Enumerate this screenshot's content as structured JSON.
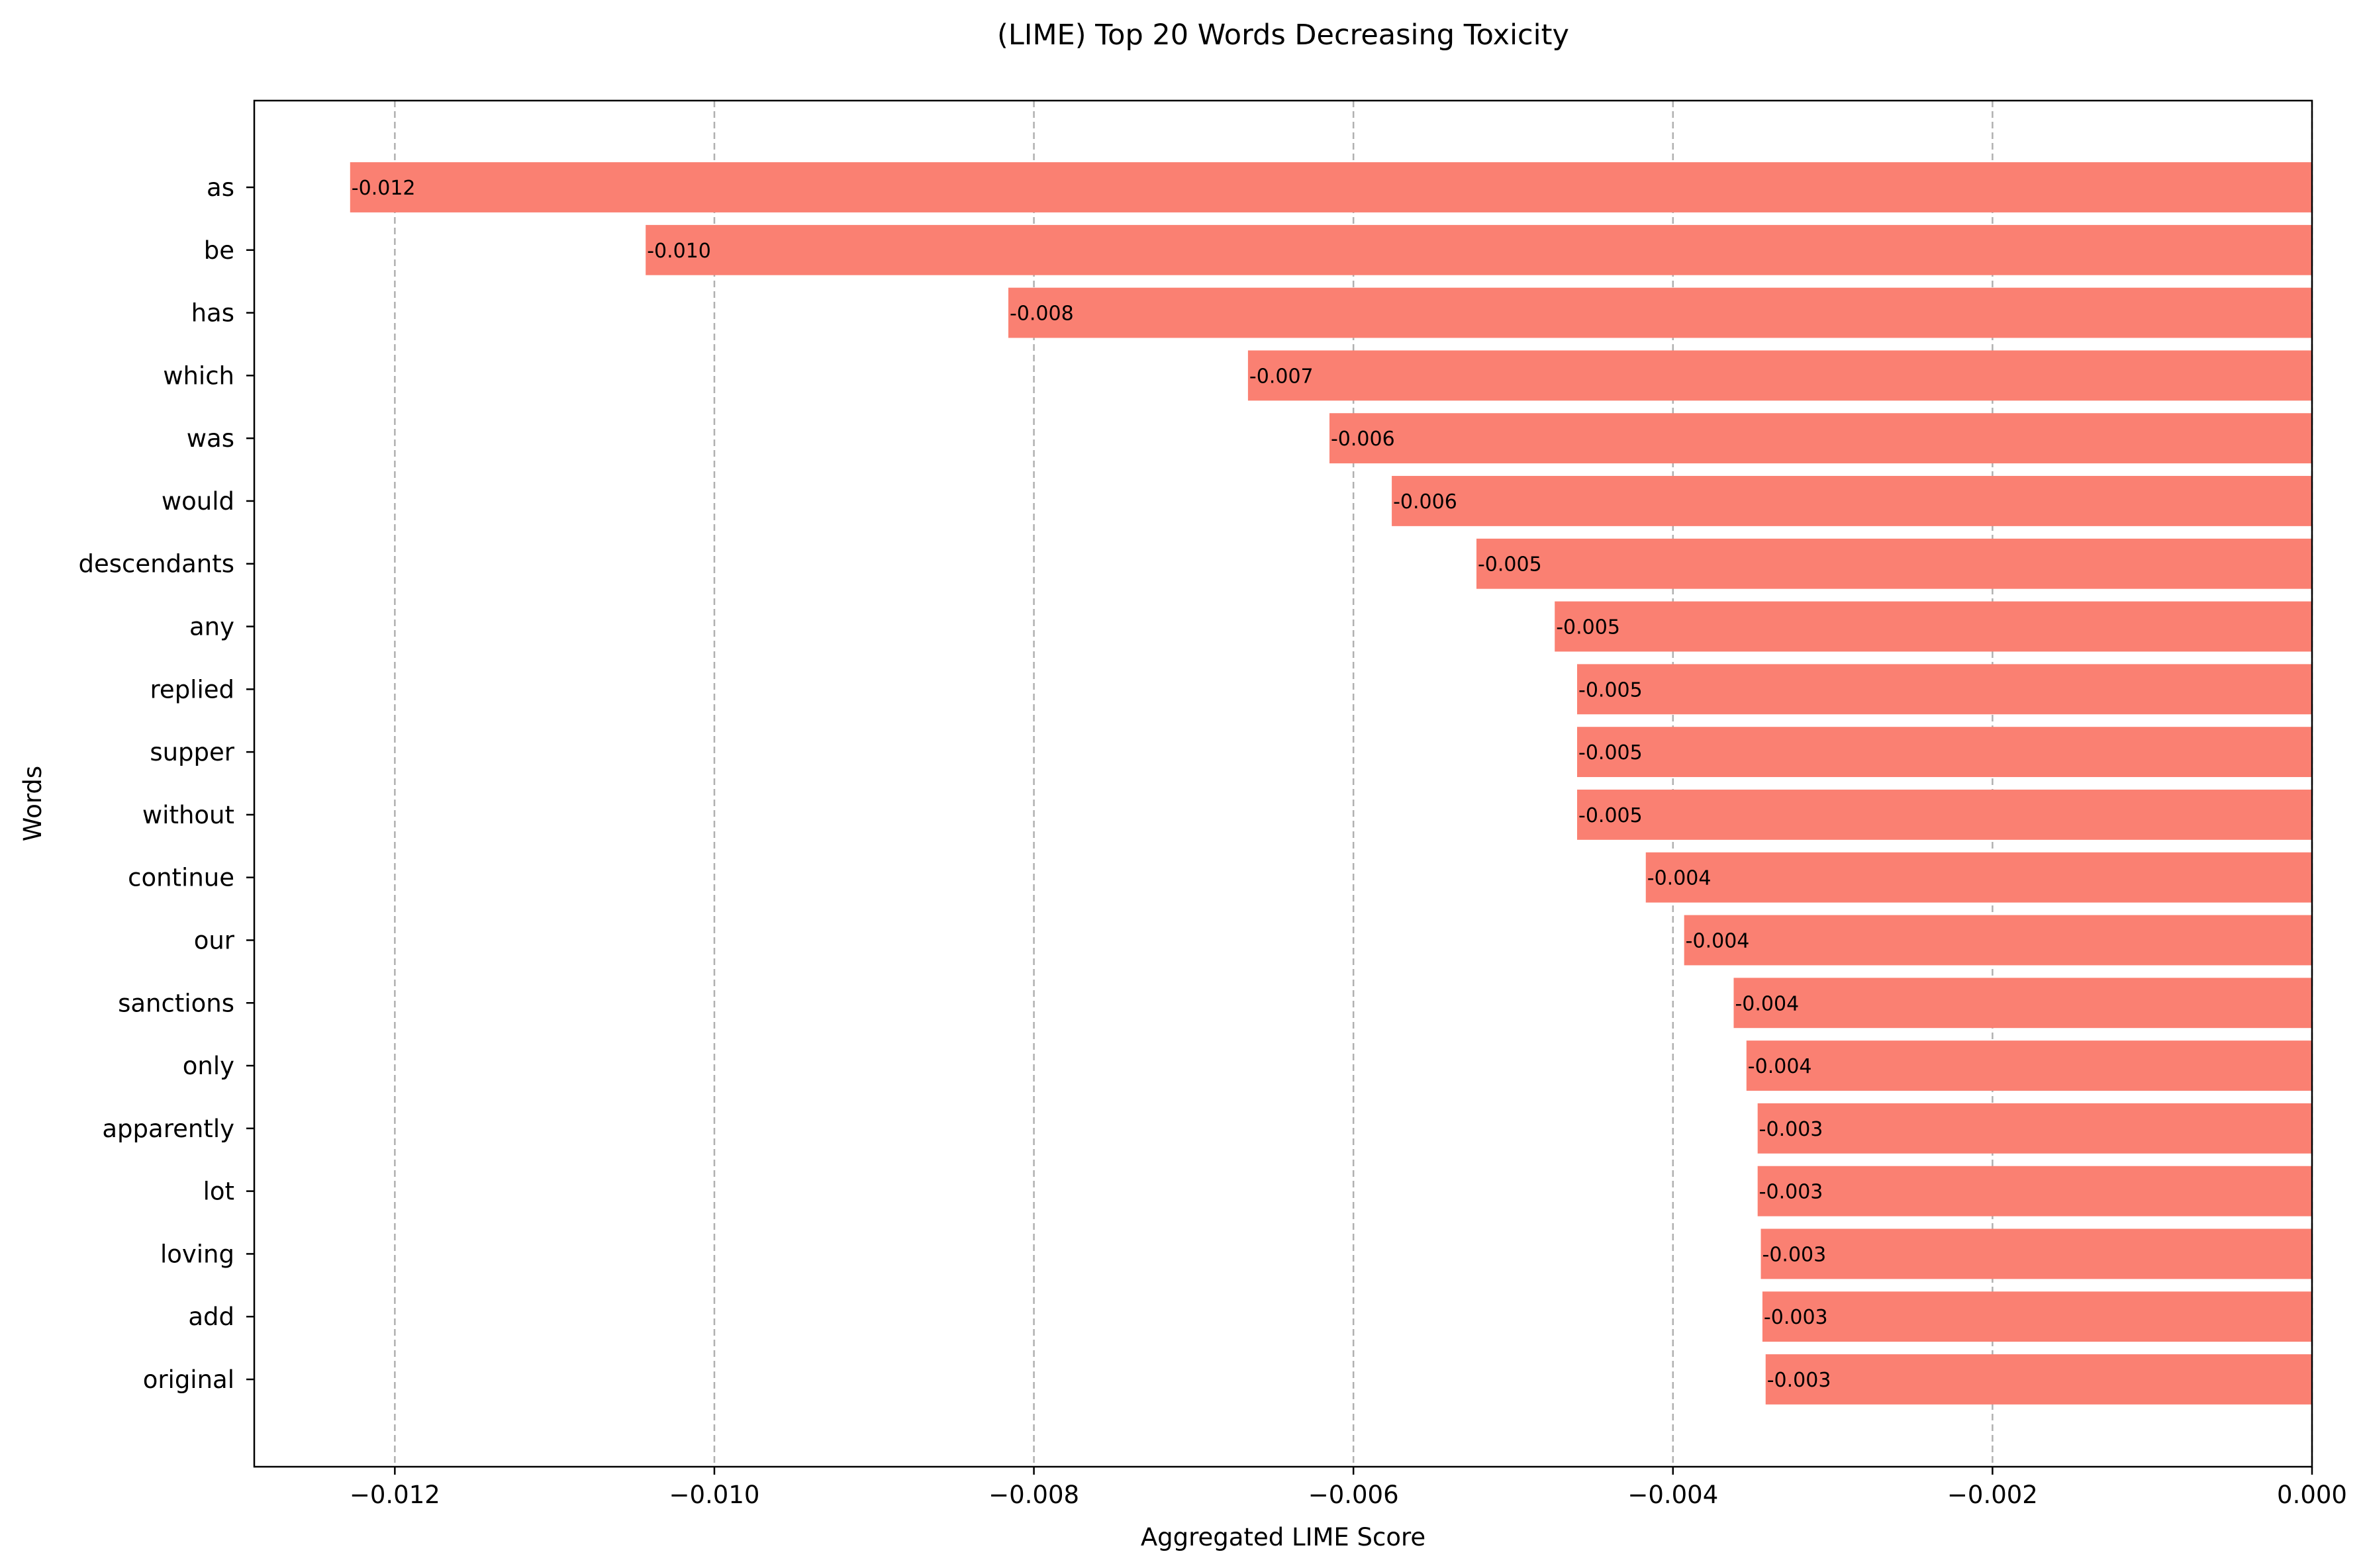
{
  "chart_data": {
    "type": "bar",
    "orientation": "horizontal",
    "title": "(LIME) Top 20 Words Decreasing Toxicity",
    "xlabel": "Aggregated LIME Score",
    "ylabel": "Words",
    "xlim": [
      -0.01288,
      0.0
    ],
    "xticks": [
      -0.012,
      -0.01,
      -0.008,
      -0.006,
      -0.004,
      -0.002,
      0.0
    ],
    "xtick_labels": [
      "−0.012",
      "−0.010",
      "−0.008",
      "−0.006",
      "−0.004",
      "−0.002",
      "0.000"
    ],
    "grid": "x-dashed",
    "bar_color": "#FA8072",
    "categories": [
      "as",
      "be",
      "has",
      "which",
      "was",
      "would",
      "descendants",
      "any",
      "replied",
      "supper",
      "without",
      "continue",
      "our",
      "sanctions",
      "only",
      "apparently",
      "lot",
      "loving",
      "add",
      "original"
    ],
    "values": [
      -0.01228,
      -0.01043,
      -0.00816,
      -0.00666,
      -0.00615,
      -0.00576,
      -0.00523,
      -0.00474,
      -0.0046,
      -0.0046,
      -0.0046,
      -0.00417,
      -0.00393,
      -0.00362,
      -0.00354,
      -0.00347,
      -0.00347,
      -0.00345,
      -0.00344,
      -0.00342
    ],
    "value_labels": [
      "-0.012",
      "-0.010",
      "-0.008",
      "-0.007",
      "-0.006",
      "-0.006",
      "-0.005",
      "-0.005",
      "-0.005",
      "-0.005",
      "-0.005",
      "-0.004",
      "-0.004",
      "-0.004",
      "-0.004",
      "-0.003",
      "-0.003",
      "-0.003",
      "-0.003",
      "-0.003"
    ]
  }
}
